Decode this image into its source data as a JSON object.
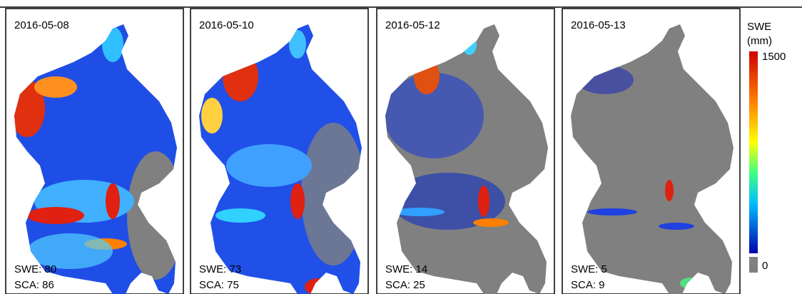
{
  "panels": [
    {
      "date": "2016-05-08",
      "swe": "SWE: 80",
      "sca": "SCA: 86"
    },
    {
      "date": "2016-05-10",
      "swe": "SWE: 73",
      "sca": "SCA: 75"
    },
    {
      "date": "2016-05-12",
      "swe": "SWE: 14",
      "sca": "SCA: 25"
    },
    {
      "date": "2016-05-13",
      "swe": "SWE: 5",
      "sca": "SCA: 9"
    }
  ],
  "colorbar": {
    "title": [
      "SWE",
      "(mm)"
    ],
    "max_label": "1500",
    "min_label": "0"
  }
}
